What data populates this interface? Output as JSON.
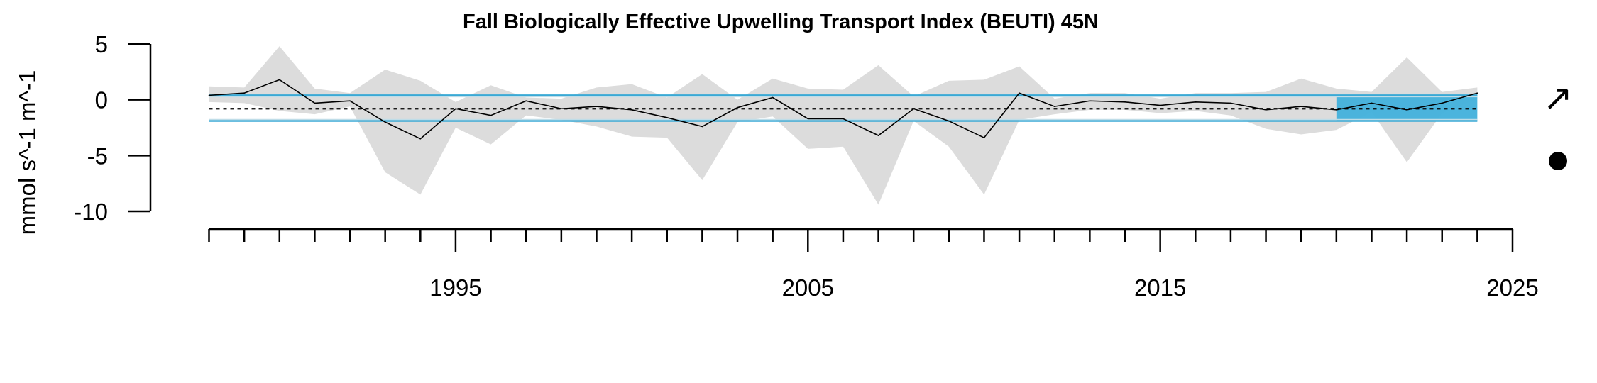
{
  "chart_data": {
    "type": "line",
    "title": "Fall Biologically Effective Upwelling Transport Index (BEUTI) 45N",
    "xlabel": "",
    "ylabel": "mmol s^-1 m^-1",
    "xlim": [
      1988,
      2025
    ],
    "ylim": [
      -10,
      5
    ],
    "y_ticks": [
      5,
      0,
      -5,
      -10
    ],
    "x_ticks_major": [
      1995,
      2005,
      2015,
      2025
    ],
    "x_tick_labels": [
      "1995",
      "2005",
      "2015",
      "2025"
    ],
    "x_ticks_minor_every": 1,
    "grid": false,
    "series": [
      {
        "x": [
          1988,
          1989,
          1990,
          1991,
          1992,
          1993,
          1994,
          1995,
          1996,
          1997,
          1998,
          1999,
          2000,
          2001,
          2002,
          2003,
          2004,
          2005,
          2006,
          2007,
          2008,
          2009,
          2010,
          2011,
          2012,
          2013,
          2014,
          2015,
          2016,
          2017,
          2018,
          2019,
          2020,
          2021,
          2022,
          2023,
          2024
        ],
        "values": [
          0.4,
          0.6,
          1.8,
          -0.3,
          -0.1,
          -2.0,
          -3.5,
          -0.8,
          -1.4,
          -0.1,
          -0.8,
          -0.6,
          -0.9,
          -1.6,
          -2.4,
          -0.7,
          0.2,
          -1.7,
          -1.7,
          -3.2,
          -0.8,
          -1.9,
          -3.4,
          0.6,
          -0.6,
          -0.1,
          -0.2,
          -0.5,
          -0.2,
          -0.3,
          -0.9,
          -0.6,
          -0.9,
          -0.3,
          -0.9,
          -0.3,
          0.6
        ],
        "lower": [
          -0.2,
          -0.3,
          -1.0,
          -1.3,
          -0.6,
          -6.5,
          -8.5,
          -2.5,
          -4.0,
          -1.4,
          -1.8,
          -2.4,
          -3.3,
          -3.4,
          -7.2,
          -2.0,
          -1.5,
          -4.4,
          -4.2,
          -9.4,
          -1.9,
          -4.2,
          -8.5,
          -1.8,
          -1.3,
          -0.9,
          -0.9,
          -1.2,
          -1.0,
          -1.4,
          -2.6,
          -3.1,
          -2.7,
          -1.1,
          -5.6,
          -1.2,
          0.1
        ],
        "upper": [
          1.2,
          1.1,
          4.8,
          1.0,
          0.6,
          2.7,
          1.7,
          -0.2,
          1.3,
          0.2,
          0.1,
          1.1,
          1.4,
          0.2,
          2.3,
          0.0,
          1.9,
          1.0,
          0.9,
          3.1,
          0.3,
          1.7,
          1.8,
          3.0,
          0.1,
          0.6,
          0.6,
          0.1,
          0.6,
          0.6,
          0.7,
          1.9,
          1.0,
          0.7,
          3.8,
          0.7,
          1.1
        ],
        "color": "#000000",
        "band_color": "#dcdcdc"
      }
    ],
    "mean": -0.8,
    "sd_upper": 0.4,
    "sd_lower": -1.9,
    "sd_line_color": "#3aa9d5",
    "recent_window": [
      2020,
      2025
    ],
    "recent_fill_color": "#41b0db",
    "trend_symbol": "↗",
    "mean_symbol": "●"
  }
}
